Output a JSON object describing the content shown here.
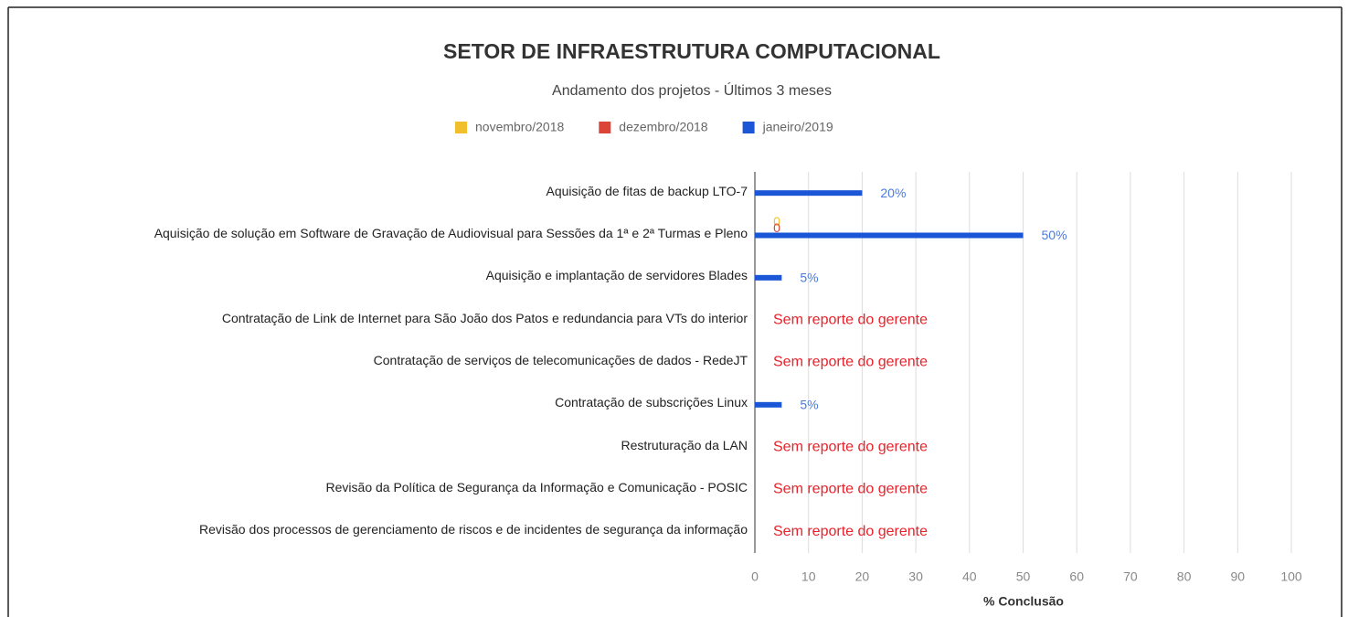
{
  "chart_data": {
    "type": "bar",
    "orientation": "horizontal",
    "title": "SETOR DE INFRAESTRUTURA COMPUTACIONAL",
    "subtitle": "Andamento dos projetos - Últimos 3 meses",
    "x_label": "% Conclusão",
    "categories": [
      "Aquisição de fitas de backup LTO-7",
      "Aquisição de solução em Software de Gravação de Audiovisual para Sessões da 1ª e 2ª Turmas e Pleno",
      "Aquisição e implantação de servidores Blades",
      "Contratação de Link de Internet para São João dos Patos e redundancia para VTs do interior",
      "Contratação de serviços de telecomunicações de dados - RedeJT",
      "Contratação de subscrições Linux",
      "Restruturação da LAN",
      "Revisão da Política de Segurança da Informação e Comunicação - POSIC",
      "Revisão dos processos de gerenciamento de riscos e de incidentes de segurança da informação"
    ],
    "series": [
      {
        "name": "novembro/2018",
        "color": "#f1bf2b",
        "values": [
          null,
          0,
          null,
          null,
          null,
          null,
          null,
          null,
          null
        ]
      },
      {
        "name": "dezembro/2018",
        "color": "#db4437",
        "values": [
          null,
          0,
          null,
          null,
          null,
          null,
          null,
          null,
          null
        ]
      },
      {
        "name": "janeiro/2019",
        "color": "#1a56d6",
        "values": [
          20,
          50,
          5,
          null,
          null,
          5,
          null,
          null,
          null
        ],
        "value_labels": [
          "20%",
          "50%",
          "5%",
          null,
          null,
          "5%",
          null,
          null,
          null
        ]
      }
    ],
    "annotations": [
      null,
      null,
      null,
      "Sem reporte do gerente",
      "Sem reporte do gerente",
      null,
      "Sem reporte do gerente",
      "Sem reporte do gerente",
      "Sem reporte do gerente"
    ],
    "annotation_color": "#e8212a",
    "xlim": [
      0,
      100
    ],
    "xticks": [
      0,
      10,
      20,
      30,
      40,
      50,
      60,
      70,
      80,
      90,
      100
    ],
    "grid": true,
    "legend": "top"
  }
}
